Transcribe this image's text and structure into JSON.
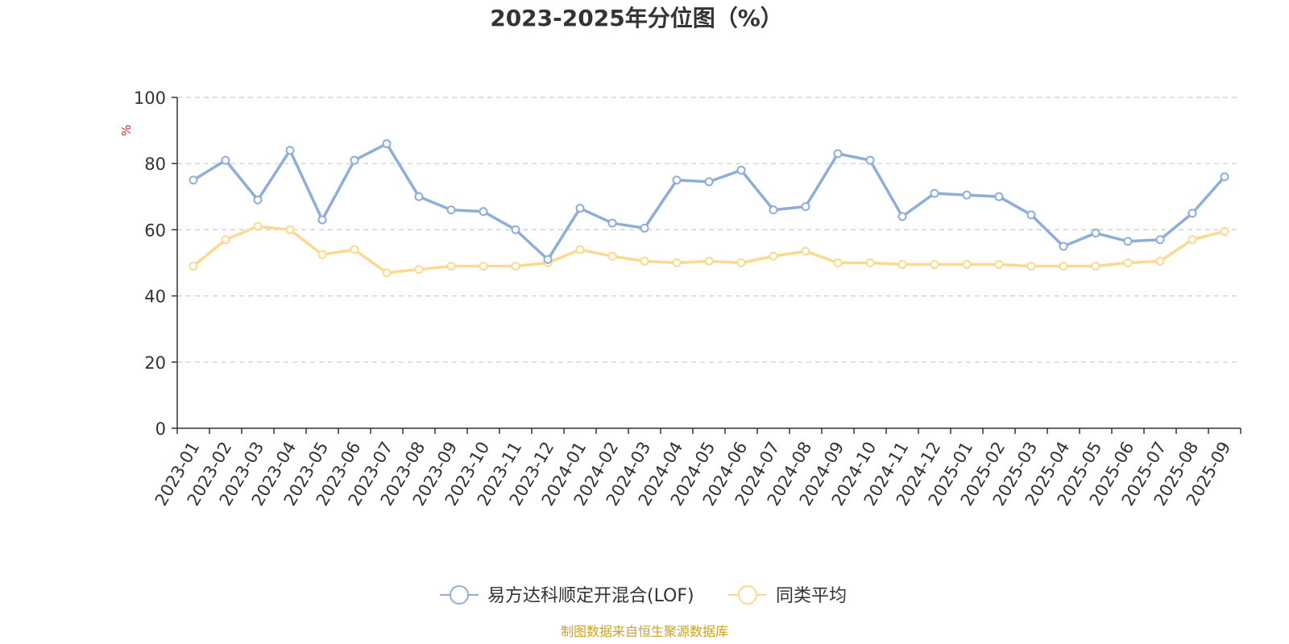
{
  "chart_data": {
    "type": "line",
    "title": "2023-2025年分位图（%）",
    "unit_label": "%",
    "categories": [
      "2023-01",
      "2023-02",
      "2023-03",
      "2023-04",
      "2023-05",
      "2023-06",
      "2023-07",
      "2023-08",
      "2023-09",
      "2023-10",
      "2023-11",
      "2023-12",
      "2024-01",
      "2024-02",
      "2024-03",
      "2024-04",
      "2024-05",
      "2024-06",
      "2024-07",
      "2024-08",
      "2024-09",
      "2024-10",
      "2024-11",
      "2024-12",
      "2025-01",
      "2025-02",
      "2025-03",
      "2025-04",
      "2025-05",
      "2025-06",
      "2025-07",
      "2025-08",
      "2025-09"
    ],
    "ylim": [
      0,
      100
    ],
    "yticks": [
      "0",
      "20",
      "40",
      "60",
      "80",
      "100"
    ],
    "grid": "horizontal-dashed",
    "legend_position": "bottom-center",
    "series": [
      {
        "name": "易方达科顺定开混合(LOF)",
        "color": "#8eaed8",
        "values": [
          75,
          81,
          69,
          84,
          63,
          81,
          86,
          70,
          66,
          65.5,
          60,
          51,
          66.5,
          62,
          60.5,
          75,
          74.5,
          78,
          66,
          67,
          83,
          81,
          64,
          71,
          70.5,
          70,
          64.5,
          55,
          59,
          56.5,
          57,
          65,
          76
        ]
      },
      {
        "name": "同类平均",
        "color": "#fcd98f",
        "values": [
          49,
          57,
          61,
          60,
          52.5,
          54,
          47,
          48,
          49,
          49,
          49,
          50,
          54,
          52,
          50.5,
          50,
          50.5,
          50,
          52,
          53.5,
          50,
          50,
          49.5,
          49.5,
          49.5,
          49.5,
          49,
          49,
          49,
          50,
          50.5,
          57,
          59.5
        ]
      }
    ],
    "source_text": "制图数据来自恒生聚源数据库",
    "colors": {
      "axis": "#333333",
      "grid": "#cccccc",
      "unit_label": "#e02020",
      "source_text": "#c9a227"
    }
  }
}
